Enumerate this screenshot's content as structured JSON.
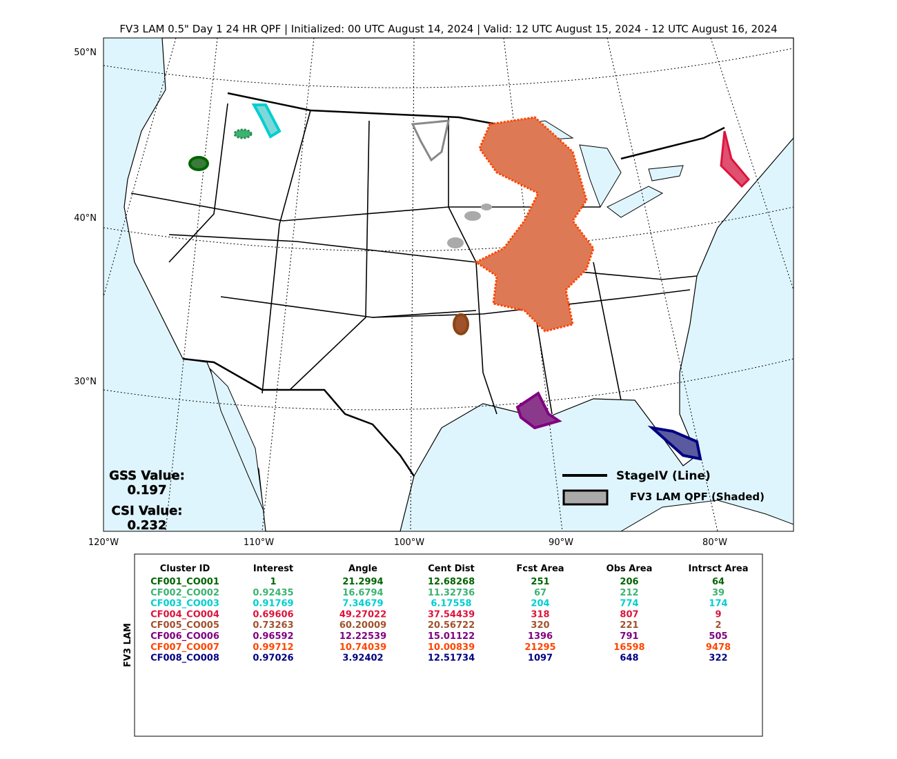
{
  "title": "FV3 LAM 0.5\" Day 1 24 HR QPF | Initialized: 00 UTC August 14, 2024 | Valid: 12 UTC August 15, 2024 - 12 UTC August 16, 2024",
  "map": {
    "lat_labels": [
      "50°N",
      "40°N",
      "30°N"
    ],
    "lon_labels": [
      "120°W",
      "110°W",
      "100°W",
      "90°W",
      "80°W"
    ],
    "gss_label": "GSS Value:",
    "gss_value": "0.197",
    "csi_label": "CSI Value:",
    "csi_value": "0.232",
    "legend": {
      "line": "StageIV (Line)",
      "shaded": "FV3 LAM QPF (Shaded)"
    }
  },
  "table": {
    "side_label": "FV3 LAM",
    "headers": [
      "Cluster ID",
      "Interest",
      "Angle",
      "Cent Dist",
      "Fcst Area",
      "Obs Area",
      "Intrsct Area"
    ],
    "rows": [
      [
        "CF001_CO001",
        "1",
        "21.2994",
        "12.68268",
        "251",
        "206",
        "64"
      ],
      [
        "CF002_CO002",
        "0.92435",
        "16.6794",
        "11.32736",
        "67",
        "212",
        "39"
      ],
      [
        "CF003_CO003",
        "0.91769",
        "7.34679",
        "6.17558",
        "204",
        "774",
        "174"
      ],
      [
        "CF004_CO004",
        "0.69606",
        "49.27022",
        "37.54439",
        "318",
        "807",
        "9"
      ],
      [
        "CF005_CO005",
        "0.73263",
        "60.20009",
        "20.56722",
        "320",
        "221",
        "2"
      ],
      [
        "CF006_CO006",
        "0.96592",
        "12.22539",
        "15.01122",
        "1396",
        "791",
        "505"
      ],
      [
        "CF007_CO007",
        "0.99712",
        "10.74039",
        "10.00839",
        "21295",
        "16598",
        "9478"
      ],
      [
        "CF008_CO008",
        "0.97026",
        "3.92402",
        "12.51734",
        "1097",
        "648",
        "322"
      ]
    ],
    "row_colors": [
      "#006400",
      "#3cb371",
      "#00ced1",
      "#dc143c",
      "#a0522d",
      "#800080",
      "#ff4500",
      "#000080"
    ]
  }
}
